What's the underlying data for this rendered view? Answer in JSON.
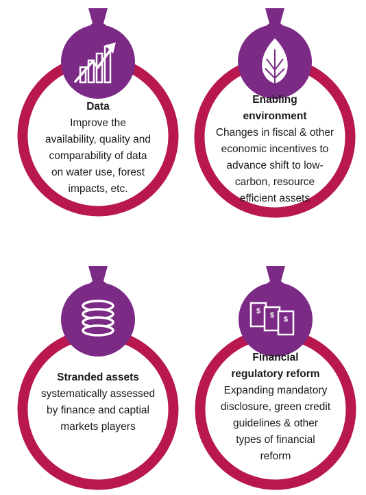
{
  "items": [
    {
      "title": [
        "Data"
      ],
      "body": [
        "Improve the",
        "availability, quality and",
        "comparability of data",
        "on water use, forest",
        "impacts, etc."
      ]
    },
    {
      "title": [
        "Enabling",
        "environment"
      ],
      "body": [
        "Changes in fiscal & other",
        "economic incentives to",
        "advance shift to low-",
        "carbon, resource",
        "efficient assets"
      ]
    },
    {
      "title": [
        "Stranded assets"
      ],
      "body": [
        "systematically assessed",
        "by finance and captial",
        "markets players"
      ]
    },
    {
      "title": [
        "Financial",
        "regulatory reform"
      ],
      "body": [
        "Expanding mandatory",
        "disclosure, green credit",
        "guidelines & other",
        "types of financial",
        "reform"
      ]
    }
  ]
}
